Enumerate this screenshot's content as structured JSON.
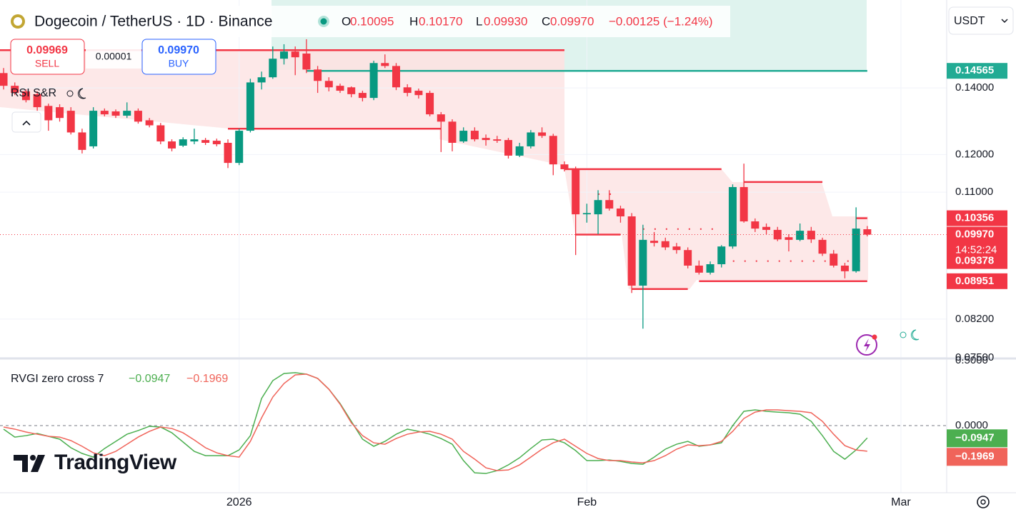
{
  "header": {
    "ohlc": [
      {
        "key": "O",
        "value": "0.10095"
      },
      {
        "key": "H",
        "value": "0.10170"
      },
      {
        "key": "L",
        "value": "0.09930"
      },
      {
        "key": "C",
        "value": "0.09970"
      }
    ],
    "change": "−0.00125 (−1.24%)",
    "quote_currency": "USDT"
  },
  "trade": {
    "sell_price": "0.09969",
    "sell_label": "SELL",
    "spread": "0.00001",
    "buy_price": "0.09970",
    "buy_label": "BUY"
  },
  "branding": "TradingView",
  "chart_data": [
    {
      "type": "candlestick",
      "title": "Dogecoin / TetherUS · 1D · Binance",
      "indicator": "RSI S&R",
      "log_scale": true,
      "grid": true,
      "up_color": "#089981",
      "down_color": "#f23645",
      "xlim": [
        -0.32,
        84.08
      ],
      "xticks": [
        {
          "value": 21,
          "label": "2026"
        },
        {
          "value": 52,
          "label": "Feb"
        },
        {
          "value": 80,
          "label": "Mar"
        }
      ],
      "ylim": [
        0.0751,
        0.1716
      ],
      "yticks": [
        {
          "value": 0.14,
          "label": "0.14000"
        },
        {
          "value": 0.12,
          "label": "0.12000"
        },
        {
          "value": 0.11,
          "label": "0.11000"
        },
        {
          "value": 0.082,
          "label": "0.08200"
        },
        {
          "value": 0.075,
          "label": "0.07500"
        }
      ],
      "open": [
        0.1449,
        0.1407,
        0.1389,
        0.138,
        0.1343,
        0.1339,
        0.1328,
        0.1263,
        0.1223,
        0.1328,
        0.1326,
        0.1313,
        0.1328,
        0.1299,
        0.1284,
        0.1237,
        0.1225,
        0.1237,
        0.1241,
        0.1239,
        0.1233,
        0.1177,
        0.1268,
        0.1418,
        0.1435,
        0.1498,
        0.1523,
        0.1516,
        0.1461,
        0.1423,
        0.1407,
        0.1402,
        0.1384,
        0.1368,
        0.1483,
        0.1473,
        0.1402,
        0.1391,
        0.1384,
        0.1317,
        0.1295,
        0.1237,
        0.1268,
        0.1247,
        0.1243,
        0.1241,
        0.1197,
        0.1223,
        0.1263,
        0.1253,
        0.1173,
        0.116,
        0.1045,
        0.1045,
        0.108,
        0.1059,
        0.104,
        0.0886,
        0.0983,
        0.0982,
        0.097,
        0.0962,
        0.0928,
        0.0913,
        0.0931,
        0.097,
        0.1113,
        0.1028,
        0.1015,
        0.1008,
        0.0991,
        0.0985,
        0.1006,
        0.0985,
        0.0954,
        0.0928,
        0.0916,
        0.10095
      ],
      "high": [
        0.1466,
        0.1418,
        0.1395,
        0.1389,
        0.135,
        0.1348,
        0.1339,
        0.1274,
        0.1339,
        0.1335,
        0.1332,
        0.1354,
        0.1335,
        0.1306,
        0.1291,
        0.1243,
        0.1249,
        0.1274,
        0.1247,
        0.1245,
        0.1243,
        0.1274,
        0.143,
        0.1454,
        0.1541,
        0.1549,
        0.1541,
        0.1567,
        0.1473,
        0.1435,
        0.1414,
        0.1405,
        0.1391,
        0.1491,
        0.1513,
        0.1483,
        0.1412,
        0.1398,
        0.1391,
        0.1324,
        0.1302,
        0.1278,
        0.1278,
        0.1257,
        0.1253,
        0.1247,
        0.1233,
        0.127,
        0.1278,
        0.1259,
        0.1181,
        0.1167,
        0.1071,
        0.1105,
        0.1105,
        0.1066,
        0.1048,
        0.102,
        0.1003,
        0.099,
        0.0978,
        0.0968,
        0.0939,
        0.0937,
        0.0973,
        0.112,
        0.1175,
        0.1035,
        0.1023,
        0.1015,
        0.0998,
        0.1023,
        0.1015,
        0.099,
        0.0962,
        0.0934,
        0.1062,
        0.1017
      ],
      "low": [
        0.1395,
        0.1377,
        0.1354,
        0.1328,
        0.1268,
        0.1295,
        0.1257,
        0.1203,
        0.1217,
        0.1311,
        0.1306,
        0.1306,
        0.1289,
        0.1278,
        0.1229,
        0.1209,
        0.1221,
        0.1229,
        0.1227,
        0.1223,
        0.1163,
        0.1171,
        0.1263,
        0.1395,
        0.143,
        0.1478,
        0.1442,
        0.1449,
        0.1384,
        0.1389,
        0.1384,
        0.137,
        0.1357,
        0.1361,
        0.1466,
        0.1393,
        0.1373,
        0.1366,
        0.1311,
        0.1207,
        0.1209,
        0.1233,
        0.1237,
        0.1225,
        0.1233,
        0.1189,
        0.1193,
        0.1217,
        0.1247,
        0.1144,
        0.1154,
        0.0951,
        0.1025,
        0.0998,
        0.1054,
        0.1025,
        0.0871,
        0.0802,
        0.097,
        0.0962,
        0.0954,
        0.0922,
        0.0909,
        0.0909,
        0.0924,
        0.0965,
        0.1025,
        0.1003,
        0.0998,
        0.0982,
        0.0959,
        0.0982,
        0.0978,
        0.0949,
        0.0924,
        0.0901,
        0.0913,
        0.0993
      ],
      "close": [
        0.1407,
        0.1384,
        0.1361,
        0.1339,
        0.1299,
        0.1306,
        0.1263,
        0.1213,
        0.1328,
        0.1317,
        0.1313,
        0.1328,
        0.1295,
        0.1284,
        0.1237,
        0.1217,
        0.1243,
        0.1243,
        0.1233,
        0.1229,
        0.1177,
        0.1268,
        0.1418,
        0.1435,
        0.1498,
        0.1523,
        0.1503,
        0.1461,
        0.1423,
        0.1402,
        0.1391,
        0.138,
        0.1368,
        0.1483,
        0.1473,
        0.1402,
        0.1384,
        0.1377,
        0.1317,
        0.1295,
        0.1233,
        0.1268,
        0.1243,
        0.1241,
        0.1239,
        0.1197,
        0.1223,
        0.1263,
        0.1253,
        0.1173,
        0.116,
        0.1045,
        0.1048,
        0.108,
        0.1059,
        0.104,
        0.0886,
        0.0985,
        0.0978,
        0.0968,
        0.0962,
        0.0928,
        0.0913,
        0.0931,
        0.097,
        0.1113,
        0.1028,
        0.1011,
        0.1008,
        0.0986,
        0.0985,
        0.1006,
        0.0986,
        0.0954,
        0.0928,
        0.0916,
        0.1011,
        0.0997
      ],
      "levels": [
        {
          "value": 0.14565,
          "label": "0.14565",
          "color": "#22ab94"
        },
        {
          "value": 0.10356,
          "label": "0.10356",
          "color": "#f23645"
        },
        {
          "value": 0.0997,
          "label": "0.09970",
          "color": "#f23645",
          "countdown": "14:52:24",
          "line": "dotted"
        },
        {
          "value": 0.09378,
          "label": "0.09378",
          "color": "#f23645"
        },
        {
          "value": 0.08951,
          "label": "0.08951",
          "color": "#f23645"
        }
      ],
      "sr_lines": [
        {
          "from": -0.32,
          "to": 50,
          "value": 0.1528,
          "color": "#f23645",
          "style": "solid"
        },
        {
          "from": 20,
          "to": 39,
          "value": 0.1274,
          "color": "#f23645",
          "style": "solid"
        },
        {
          "from": 50,
          "to": 64,
          "value": 0.116,
          "color": "#f23645",
          "style": "solid"
        },
        {
          "from": 51,
          "to": 55,
          "value": 0.0997,
          "color": "#f23645",
          "style": "solid"
        },
        {
          "from": 56,
          "to": 61,
          "value": 0.0879,
          "color": "#f23645",
          "style": "solid"
        },
        {
          "from": 66,
          "to": 73,
          "value": 0.1126,
          "color": "#f23645",
          "style": "solid"
        },
        {
          "from": 62,
          "to": 77,
          "value": 0.08951,
          "color": "#f23645",
          "style": "solid"
        },
        {
          "from": 76,
          "to": 77,
          "value": 0.10356,
          "color": "#f23645",
          "style": "solid"
        },
        {
          "from": 27,
          "to": 77,
          "value": 0.14565,
          "color": "#22ab94",
          "style": "solid"
        },
        {
          "from": 57,
          "to": 64,
          "value": 0.101,
          "color": "#f23645",
          "style": "dotted"
        },
        {
          "from": 64,
          "to": 77,
          "value": 0.09378,
          "color": "#f23645",
          "style": "dotted"
        },
        {
          "from": 53,
          "to": 55,
          "value": 0.1095,
          "color": "#f23645",
          "style": "dotted"
        }
      ]
    },
    {
      "type": "line",
      "title": "RVGI zero cross 7",
      "xlim": [
        -0.32,
        84.08
      ],
      "ylim": [
        -0.516,
        0.5
      ],
      "yticks": [
        {
          "value": 0.5,
          "label": "0.5000"
        },
        {
          "value": 0,
          "label": "0.0000"
        }
      ],
      "zero_line": true,
      "series": [
        {
          "color": "#4caf50",
          "last_label": "−0.0947",
          "values": [
            -0.027,
            -0.088,
            -0.077,
            -0.06,
            -0.082,
            -0.104,
            -0.17,
            -0.214,
            -0.242,
            -0.176,
            -0.121,
            -0.066,
            -0.038,
            -0.005,
            -0.011,
            -0.055,
            -0.126,
            -0.198,
            -0.231,
            -0.231,
            -0.231,
            -0.187,
            -0.077,
            0.209,
            0.346,
            0.401,
            0.407,
            0.396,
            0.363,
            0.28,
            0.17,
            0.033,
            -0.104,
            -0.159,
            -0.121,
            -0.066,
            -0.027,
            -0.044,
            -0.066,
            -0.099,
            -0.143,
            -0.269,
            -0.363,
            -0.368,
            -0.346,
            -0.302,
            -0.247,
            -0.176,
            -0.11,
            -0.104,
            -0.132,
            -0.192,
            -0.269,
            -0.269,
            -0.264,
            -0.275,
            -0.291,
            -0.297,
            -0.242,
            -0.181,
            -0.143,
            -0.121,
            -0.159,
            -0.148,
            -0.132,
            0.0,
            0.11,
            0.121,
            0.11,
            0.104,
            0.099,
            0.088,
            0.033,
            -0.077,
            -0.198,
            -0.258,
            -0.187,
            -0.0947
          ]
        },
        {
          "color": "#f0645a",
          "last_label": "−0.1969",
          "values": [
            -0.011,
            -0.027,
            -0.049,
            -0.066,
            -0.082,
            -0.088,
            -0.115,
            -0.159,
            -0.209,
            -0.231,
            -0.198,
            -0.143,
            -0.088,
            -0.044,
            -0.011,
            -0.022,
            -0.055,
            -0.11,
            -0.17,
            -0.209,
            -0.231,
            -0.242,
            -0.121,
            0.06,
            0.22,
            0.324,
            0.39,
            0.396,
            0.363,
            0.28,
            0.165,
            0.022,
            -0.077,
            -0.132,
            -0.143,
            -0.099,
            -0.066,
            -0.049,
            -0.044,
            -0.066,
            -0.104,
            -0.198,
            -0.258,
            -0.324,
            -0.346,
            -0.341,
            -0.302,
            -0.242,
            -0.181,
            -0.132,
            -0.104,
            -0.159,
            -0.214,
            -0.253,
            -0.269,
            -0.269,
            -0.28,
            -0.286,
            -0.269,
            -0.231,
            -0.181,
            -0.148,
            -0.154,
            -0.148,
            -0.121,
            -0.044,
            0.055,
            0.104,
            0.121,
            0.121,
            0.115,
            0.11,
            0.099,
            0.033,
            -0.066,
            -0.154,
            -0.187,
            -0.1969
          ]
        }
      ]
    }
  ]
}
